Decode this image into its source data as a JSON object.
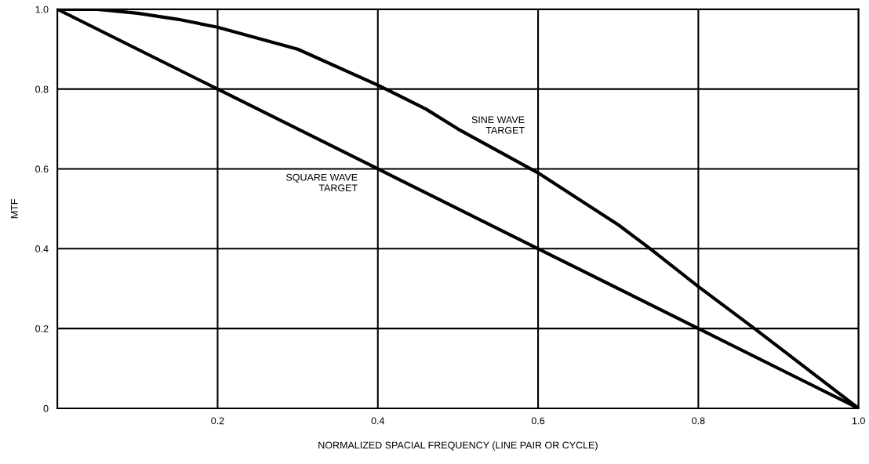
{
  "chart_data": {
    "type": "line",
    "xlabel": "NORMALIZED SPACIAL FREQUENCY (LINE PAIR OR CYCLE)",
    "ylabel": "MTF",
    "series": [
      {
        "name": "SINE WAVE\nTARGET",
        "color": "#000000",
        "x": [
          0,
          0.05,
          0.1,
          0.15,
          0.2,
          0.3,
          0.4,
          0.46,
          0.5,
          0.6,
          0.7,
          0.74,
          0.8,
          0.87,
          1.0
        ],
        "values": [
          1.0,
          1.0,
          0.99,
          0.975,
          0.955,
          0.9,
          0.81,
          0.75,
          0.7,
          0.59,
          0.46,
          0.4,
          0.305,
          0.2,
          0.0
        ]
      },
      {
        "name": "SQUARE WAVE\nTARGET",
        "color": "#000000",
        "x": [
          0,
          0.2,
          0.4,
          0.6,
          0.8,
          1.0
        ],
        "values": [
          1.0,
          0.8,
          0.6,
          0.4,
          0.2,
          0.0
        ]
      }
    ],
    "xlim": [
      0,
      1.0
    ],
    "ylim": [
      0,
      1.0
    ],
    "xticks": [
      0.2,
      0.4,
      0.6,
      0.8,
      {
        "value": 1,
        "label": "1.0"
      }
    ],
    "yticks": [
      0,
      0.2,
      0.4,
      0.6,
      0.8,
      {
        "value": 1,
        "label": "1.0"
      }
    ],
    "grid": true
  }
}
